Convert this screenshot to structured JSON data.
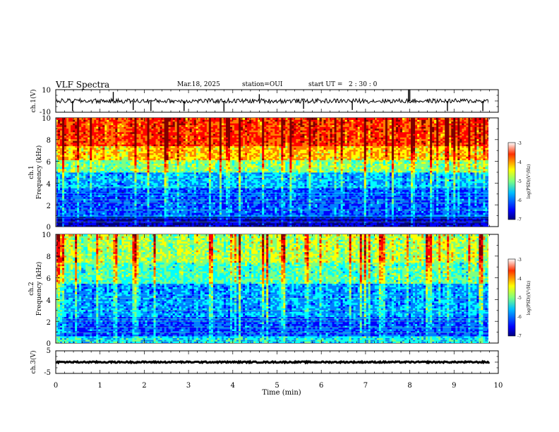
{
  "header": {
    "title": "VLF Spectra",
    "date": "Mar.18, 2025",
    "station": "station=OUI",
    "start_label": "start  UT  =",
    "start_time": "2 : 30 : 0"
  },
  "chart_data": [
    {
      "type": "line",
      "panel": "ch1-waveform",
      "ylabel": "ch.1(V)",
      "ylim": [
        -10,
        10
      ],
      "yticks": [
        "10",
        "-10"
      ],
      "x_range": [
        0,
        9.8
      ],
      "baseline": 0,
      "noise_amplitude": 2,
      "spikes": [
        {
          "x": 0.38,
          "y": -9
        },
        {
          "x": 1.3,
          "y": 8
        },
        {
          "x": 1.75,
          "y": -8
        },
        {
          "x": 2.15,
          "y": -9
        },
        {
          "x": 2.9,
          "y": -9
        },
        {
          "x": 3.8,
          "y": -9
        },
        {
          "x": 4.6,
          "y": 6
        },
        {
          "x": 5.6,
          "y": -7
        },
        {
          "x": 6.7,
          "y": -8
        },
        {
          "x": 7.97,
          "y": 10
        },
        {
          "x": 8.0,
          "y": 10
        },
        {
          "x": 8.85,
          "y": -9
        },
        {
          "x": 9.65,
          "y": -9
        }
      ]
    },
    {
      "type": "heatmap",
      "panel": "ch1-spectrogram",
      "ylabel_line1": "ch.1",
      "ylabel_line2": "Frequency (kHz)",
      "ylim": [
        0,
        10
      ],
      "yticks": [
        "0",
        "2",
        "4",
        "6",
        "8",
        "10"
      ],
      "x_range": [
        0,
        9.8
      ],
      "bands": [
        {
          "from": 0,
          "to": 1,
          "level": -6.8
        },
        {
          "from": 1,
          "to": 3.5,
          "level": -6.2
        },
        {
          "from": 3.5,
          "to": 5,
          "level": -5.8
        },
        {
          "from": 5,
          "to": 6.2,
          "level": -5.0
        },
        {
          "from": 6.2,
          "to": 7.5,
          "level": -4.3
        },
        {
          "from": 7.5,
          "to": 10,
          "level": -3.7
        }
      ],
      "colorbar": {
        "label": "log(PSD)(V²/Hz)",
        "range": [
          -7,
          -3
        ],
        "ticks": [
          "-3",
          "-4",
          "-5",
          "-6",
          "-7"
        ]
      }
    },
    {
      "type": "heatmap",
      "panel": "ch2-spectrogram",
      "ylabel_line1": "ch.2",
      "ylabel_line2": "Frequency (kHz)",
      "ylim": [
        0,
        10
      ],
      "yticks": [
        "0",
        "2",
        "4",
        "6",
        "8",
        "10"
      ],
      "x_range": [
        0,
        9.8
      ],
      "bands": [
        {
          "from": 0,
          "to": 0.6,
          "level": -5.6
        },
        {
          "from": 0.6,
          "to": 2.5,
          "level": -6.2
        },
        {
          "from": 2.5,
          "to": 5.5,
          "level": -5.9
        },
        {
          "from": 5.5,
          "to": 7.5,
          "level": -5.2
        },
        {
          "from": 7.5,
          "to": 10,
          "level": -4.8
        }
      ],
      "colorbar": {
        "label": "log(PSD)(V²/Hz)",
        "range": [
          -7,
          -3
        ],
        "ticks": [
          "-3",
          "-4",
          "-5",
          "-6",
          "-7"
        ]
      }
    },
    {
      "type": "line",
      "panel": "ch3-waveform",
      "ylabel": "ch.3(V)",
      "ylim": [
        -5,
        5
      ],
      "yticks": [
        "5",
        "-5"
      ],
      "x_range": [
        0,
        9.8
      ],
      "baseline": 0,
      "noise_amplitude": 0.3,
      "spikes": []
    }
  ],
  "x_axis": {
    "label": "Time  (min)",
    "range": [
      0,
      10
    ],
    "ticks": [
      "0",
      "1",
      "2",
      "3",
      "4",
      "5",
      "6",
      "7",
      "8",
      "9",
      "10"
    ]
  },
  "colors": {
    "colormap": [
      "#00007f",
      "#0000ff",
      "#007fff",
      "#00ffff",
      "#7fff7f",
      "#ffff00",
      "#ff7f00",
      "#ff0000",
      "#7f0000"
    ]
  }
}
